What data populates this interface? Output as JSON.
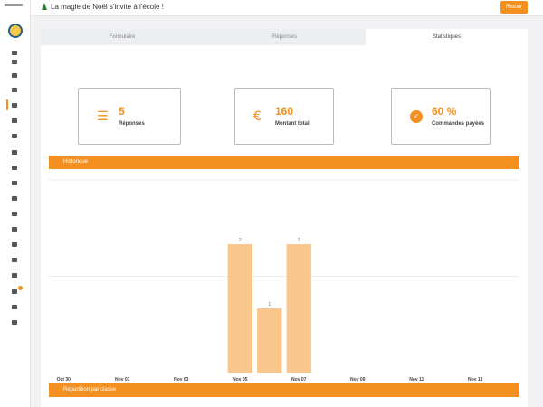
{
  "header": {
    "title": "La magie de Noël s'invite à l'école !",
    "back_button": "Retour"
  },
  "tabs": [
    "Formulaire",
    "Réponses",
    "Statistiques"
  ],
  "stats": [
    {
      "value": "5",
      "label": "Réponses"
    },
    {
      "value": "160",
      "label": "Montant total"
    },
    {
      "value": "60 %",
      "label": "Commandes payées"
    }
  ],
  "sections": [
    "Historique",
    "Répartition par classe"
  ],
  "chart_data": {
    "type": "bar",
    "categories": [
      "Oct 30",
      null,
      "Nov 01",
      null,
      "Nov 03",
      null,
      "Nov 05",
      null,
      "Nov 07",
      null,
      "Nov 09",
      null,
      "Nov 11",
      null,
      "Nov 13",
      null
    ],
    "values": [
      null,
      null,
      null,
      null,
      null,
      null,
      2,
      1,
      2,
      null,
      null,
      null,
      null,
      null,
      null,
      null
    ],
    "color": "#f9c68c",
    "ylim": [
      0,
      3
    ],
    "yticks": [
      1.5,
      3
    ],
    "grid": true
  }
}
